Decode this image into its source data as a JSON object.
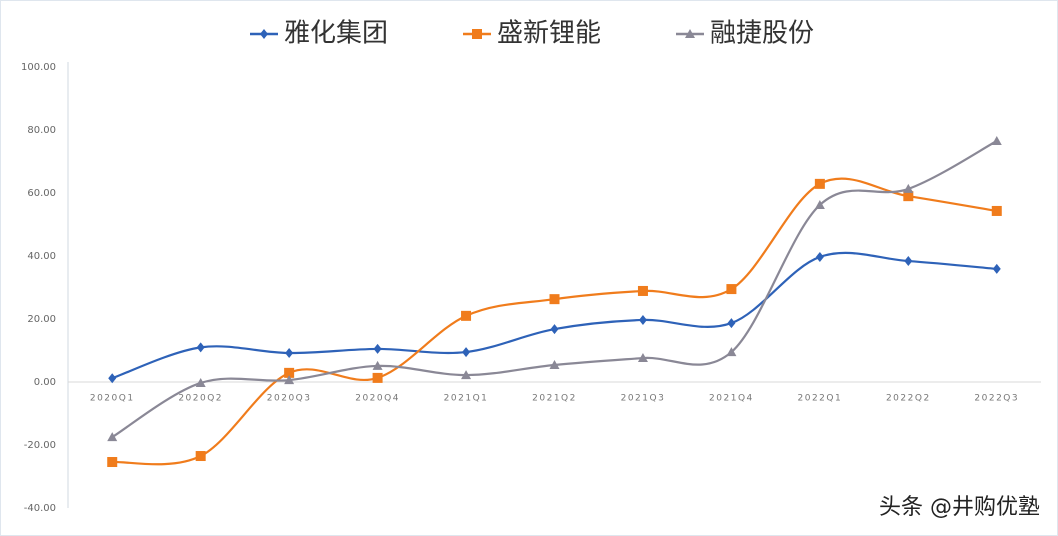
{
  "chart_data": {
    "type": "line",
    "categories": [
      "2020Q1",
      "2020Q2",
      "2020Q3",
      "2020Q4",
      "2021Q1",
      "2021Q2",
      "2021Q3",
      "2021Q4",
      "2022Q1",
      "2022Q2",
      "2022Q3"
    ],
    "series": [
      {
        "name": "雅化集团",
        "color": "#2e62b8",
        "marker": "diamond",
        "values": [
          1.2,
          11,
          9.2,
          10.5,
          9.5,
          16.8,
          19.7,
          18.7,
          39.7,
          38.4,
          35.9
        ]
      },
      {
        "name": "盛新锂能",
        "color": "#f07c1c",
        "marker": "square",
        "values": [
          -25.4,
          -23.5,
          2.9,
          1.3,
          21,
          26.3,
          28.9,
          29.5,
          62.9,
          59,
          54.3
        ]
      },
      {
        "name": "融捷股份",
        "color": "#8a8896",
        "marker": "triangle",
        "values": [
          -17.5,
          -0.3,
          0.6,
          5.1,
          2.2,
          5.4,
          7.6,
          9.5,
          56.2,
          61.3,
          76.5
        ]
      }
    ],
    "ylim": [
      -40,
      100
    ],
    "yticks": [
      {
        "value": -40,
        "label": "-40.00"
      },
      {
        "value": -20,
        "label": "-20.00"
      },
      {
        "value": 0,
        "label": "0.00"
      },
      {
        "value": 20,
        "label": "20.00"
      },
      {
        "value": 40,
        "label": "40.00"
      },
      {
        "value": 60,
        "label": "60.00"
      },
      {
        "value": 80,
        "label": "80.00"
      },
      {
        "value": 100,
        "label": "100.00"
      }
    ],
    "grid": false,
    "smooth": true,
    "legend": "top",
    "watermark": "头条 @井购优塾"
  }
}
